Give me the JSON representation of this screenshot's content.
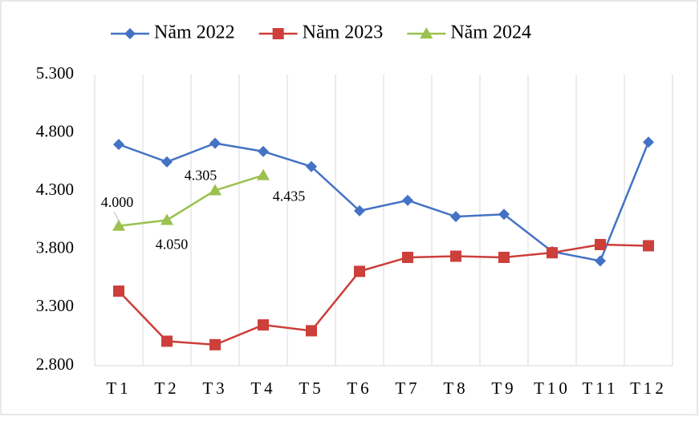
{
  "chart_data": {
    "type": "line",
    "categories": [
      "T1",
      "T2",
      "T3",
      "T4",
      "T5",
      "T6",
      "T7",
      "T8",
      "T9",
      "T10",
      "T11",
      "T12"
    ],
    "series": [
      {
        "name": "Năm 2022",
        "color": "#4472c4",
        "marker": "diamond",
        "values": [
          4700,
          4550,
          4710,
          4640,
          4510,
          4130,
          4220,
          4080,
          4100,
          3780,
          3700,
          4720
        ]
      },
      {
        "name": "Năm 2023",
        "color": "#cc3f3a",
        "marker": "square",
        "values": [
          3440,
          3010,
          2980,
          3150,
          3100,
          3610,
          3730,
          3740,
          3730,
          3770,
          3840,
          3830
        ]
      },
      {
        "name": "Năm 2024",
        "color": "#9bc14e",
        "marker": "triangle",
        "values": [
          4000,
          4050,
          4305,
          4435,
          null,
          null,
          null,
          null,
          null,
          null,
          null,
          null
        ],
        "value_labels": [
          "4.000",
          "4.050",
          "4.305",
          "4.435",
          null,
          null,
          null,
          null,
          null,
          null,
          null,
          null
        ]
      }
    ],
    "ylim": [
      2800,
      5300
    ],
    "yticks": [
      {
        "value": 2800,
        "label": "2.800"
      },
      {
        "value": 3300,
        "label": "3.300"
      },
      {
        "value": 3800,
        "label": "3.800"
      },
      {
        "value": 4300,
        "label": "4.300"
      },
      {
        "value": 4800,
        "label": "4.800"
      },
      {
        "value": 5300,
        "label": "5.300"
      }
    ],
    "grid": "x",
    "legend": "top"
  }
}
